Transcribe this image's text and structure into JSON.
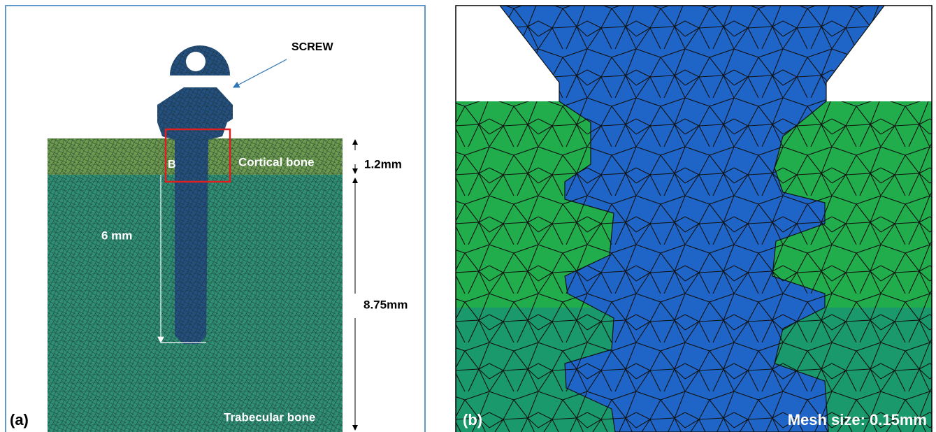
{
  "panel_a": {
    "label": "(a)",
    "screw": "SCREW",
    "cortical": "Cortical bone",
    "region": "B",
    "cortical_thickness": "1.2mm",
    "screw_length": "6 mm",
    "trabecular_thickness": "8.75mm",
    "trabecular": "Trabecular bone"
  },
  "panel_b": {
    "label": "(b)",
    "mesh_size": "Mesh size: 0.15mm"
  }
}
